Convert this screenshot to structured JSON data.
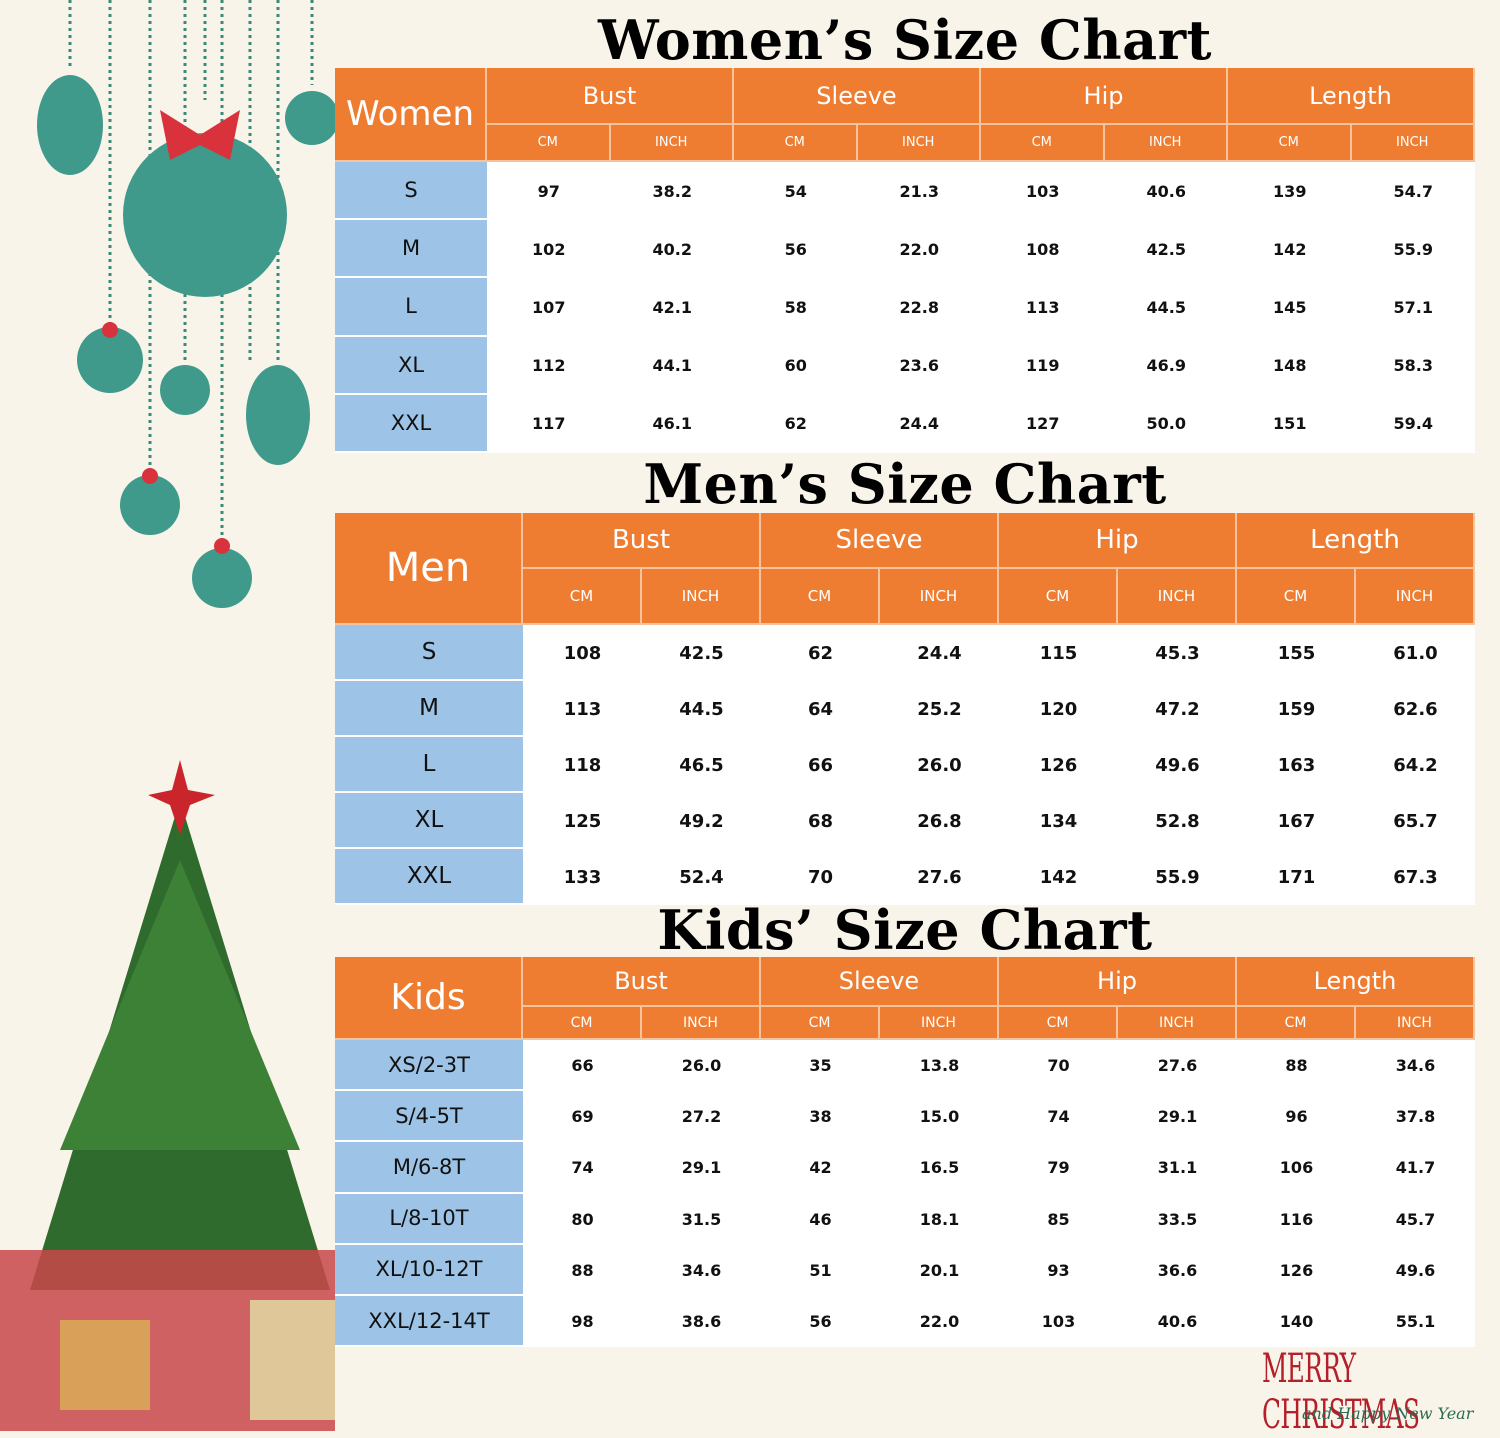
{
  "tables": [
    {
      "title": "Women’s Size Chart",
      "corner": "Women",
      "groups": [
        "Bust",
        "Sleeve",
        "Hip",
        "Length"
      ],
      "units": [
        "CM",
        "INCH"
      ],
      "rows": [
        {
          "size": "S",
          "values": [
            "97",
            "38.2",
            "54",
            "21.3",
            "103",
            "40.6",
            "139",
            "54.7"
          ]
        },
        {
          "size": "M",
          "values": [
            "102",
            "40.2",
            "56",
            "22.0",
            "108",
            "42.5",
            "142",
            "55.9"
          ]
        },
        {
          "size": "L",
          "values": [
            "107",
            "42.1",
            "58",
            "22.8",
            "113",
            "44.5",
            "145",
            "57.1"
          ]
        },
        {
          "size": "XL",
          "values": [
            "112",
            "44.1",
            "60",
            "23.6",
            "119",
            "46.9",
            "148",
            "58.3"
          ]
        },
        {
          "size": "XXL",
          "values": [
            "117",
            "46.1",
            "62",
            "24.4",
            "127",
            "50.0",
            "151",
            "59.4"
          ]
        }
      ]
    },
    {
      "title": "Men’s Size Chart",
      "corner": "Men",
      "groups": [
        "Bust",
        "Sleeve",
        "Hip",
        "Length"
      ],
      "units": [
        "CM",
        "INCH"
      ],
      "rows": [
        {
          "size": "S",
          "values": [
            "108",
            "42.5",
            "62",
            "24.4",
            "115",
            "45.3",
            "155",
            "61.0"
          ]
        },
        {
          "size": "M",
          "values": [
            "113",
            "44.5",
            "64",
            "25.2",
            "120",
            "47.2",
            "159",
            "62.6"
          ]
        },
        {
          "size": "L",
          "values": [
            "118",
            "46.5",
            "66",
            "26.0",
            "126",
            "49.6",
            "163",
            "64.2"
          ]
        },
        {
          "size": "XL",
          "values": [
            "125",
            "49.2",
            "68",
            "26.8",
            "134",
            "52.8",
            "167",
            "65.7"
          ]
        },
        {
          "size": "XXL",
          "values": [
            "133",
            "52.4",
            "70",
            "27.6",
            "142",
            "55.9",
            "171",
            "67.3"
          ]
        }
      ]
    },
    {
      "title": "Kids’ Size Chart",
      "corner": "Kids",
      "groups": [
        "Bust",
        "Sleeve",
        "Hip",
        "Length"
      ],
      "units": [
        "CM",
        "INCH"
      ],
      "rows": [
        {
          "size": "XS/2-3T",
          "values": [
            "66",
            "26.0",
            "35",
            "13.8",
            "70",
            "27.6",
            "88",
            "34.6"
          ]
        },
        {
          "size": "S/4-5T",
          "values": [
            "69",
            "27.2",
            "38",
            "15.0",
            "74",
            "29.1",
            "96",
            "37.8"
          ]
        },
        {
          "size": "M/6-8T",
          "values": [
            "74",
            "29.1",
            "42",
            "16.5",
            "79",
            "31.1",
            "106",
            "41.7"
          ]
        },
        {
          "size": "L/8-10T",
          "values": [
            "80",
            "31.5",
            "46",
            "18.1",
            "85",
            "33.5",
            "116",
            "45.7"
          ]
        },
        {
          "size": "XL/10-12T",
          "values": [
            "88",
            "34.6",
            "51",
            "20.1",
            "93",
            "36.6",
            "126",
            "49.6"
          ]
        },
        {
          "size": "XXL/12-14T",
          "values": [
            "98",
            "38.6",
            "56",
            "22.0",
            "103",
            "40.6",
            "140",
            "55.1"
          ]
        }
      ]
    }
  ],
  "greeting": {
    "line1": "MERRY CHRISTMAS",
    "line2": "and Happy New Year"
  }
}
